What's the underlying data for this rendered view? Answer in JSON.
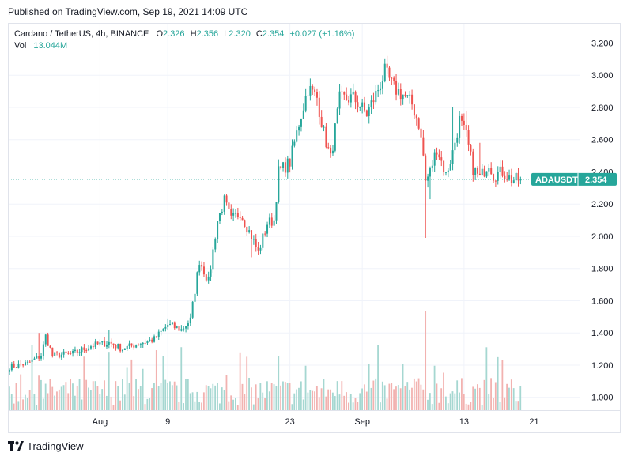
{
  "header": {
    "published": "Published on TradingView.com, Sep 19, 2021 14:09 UTC"
  },
  "legend": {
    "symbol": "Cardano / TetherUS, 4h, BINANCE",
    "o_label": "O",
    "o_value": "2.326",
    "h_label": "H",
    "h_value": "2.356",
    "l_label": "L",
    "l_value": "2.320",
    "c_label": "C",
    "c_value": "2.354",
    "change": "+0.027 (+1.16%)",
    "vol_label": "Vol",
    "vol_value": "13.044M"
  },
  "footer": {
    "brand": "TradingView",
    "logo_icon": "tradingview-logo-icon"
  },
  "colors": {
    "up": "#26a69a",
    "down": "#ef5350",
    "vol_up": "#a5d7d1",
    "vol_down": "#f2b2b0",
    "grid": "#f0f3fa",
    "text": "#131722"
  },
  "chart_data": {
    "type": "candlestick",
    "symbol": "ADAUSDT",
    "interval": "4h",
    "exchange": "BINANCE",
    "last_price": 2.354,
    "price_label": "ADAUSDT",
    "price_value": "2.354",
    "ylim": [
      0.92,
      3.32
    ],
    "y_ticks": [
      "1.000",
      "1.200",
      "1.400",
      "1.600",
      "1.800",
      "2.000",
      "2.200",
      "2.400",
      "2.600",
      "2.800",
      "3.000",
      "3.200"
    ],
    "x_ticks": [
      "Aug",
      "9",
      "23",
      "Sep",
      "13",
      "21"
    ],
    "anchors": [
      [
        0,
        1.19
      ],
      [
        8,
        1.21
      ],
      [
        14,
        1.26
      ],
      [
        16,
        1.38
      ],
      [
        19,
        1.26
      ],
      [
        28,
        1.27
      ],
      [
        36,
        1.32
      ],
      [
        44,
        1.34
      ],
      [
        50,
        1.3
      ],
      [
        56,
        1.33
      ],
      [
        64,
        1.36
      ],
      [
        70,
        1.45
      ],
      [
        76,
        1.42
      ],
      [
        80,
        1.48
      ],
      [
        84,
        1.85
      ],
      [
        88,
        1.72
      ],
      [
        92,
        2.1
      ],
      [
        95,
        2.22
      ],
      [
        98,
        2.1
      ],
      [
        102,
        2.15
      ],
      [
        107,
        2.0
      ],
      [
        110,
        1.9
      ],
      [
        114,
        2.08
      ],
      [
        117,
        2.1
      ],
      [
        119,
        2.4
      ],
      [
        124,
        2.46
      ],
      [
        128,
        2.7
      ],
      [
        132,
        2.92
      ],
      [
        136,
        2.86
      ],
      [
        139,
        2.64
      ],
      [
        142,
        2.48
      ],
      [
        146,
        2.85
      ],
      [
        152,
        2.86
      ],
      [
        158,
        2.76
      ],
      [
        162,
        2.88
      ],
      [
        166,
        3.02
      ],
      [
        170,
        2.92
      ],
      [
        174,
        2.88
      ],
      [
        178,
        2.82
      ],
      [
        181,
        2.7
      ],
      [
        183,
        2.5
      ],
      [
        184,
        2.34
      ],
      [
        186,
        2.4
      ],
      [
        189,
        2.55
      ],
      [
        193,
        2.38
      ],
      [
        196,
        2.52
      ],
      [
        199,
        2.72
      ],
      [
        202,
        2.62
      ],
      [
        205,
        2.42
      ],
      [
        208,
        2.36
      ],
      [
        212,
        2.46
      ],
      [
        214,
        2.38
      ],
      [
        218,
        2.4
      ],
      [
        222,
        2.35
      ],
      [
        226,
        2.354
      ]
    ],
    "spikes": [
      [
        13,
        "high",
        1.4
      ],
      [
        44,
        "high",
        1.42
      ],
      [
        70,
        "high",
        1.49
      ],
      [
        107,
        "low",
        1.87
      ],
      [
        132,
        "high",
        2.98
      ],
      [
        166,
        "high",
        3.1
      ],
      [
        184,
        "low",
        1.99
      ],
      [
        186,
        "low",
        2.23
      ],
      [
        196,
        "high",
        2.8
      ],
      [
        202,
        "high",
        2.78
      ],
      [
        208,
        "high",
        2.58
      ]
    ],
    "volume": {
      "series": "Vol",
      "last": "13.044M",
      "peaks": [
        [
          13,
          0.35
        ],
        [
          119,
          0.55
        ],
        [
          131,
          0.45
        ],
        [
          184,
          1.0
        ],
        [
          188,
          0.45
        ],
        [
          192,
          0.38
        ]
      ]
    },
    "candle_count": 227
  }
}
